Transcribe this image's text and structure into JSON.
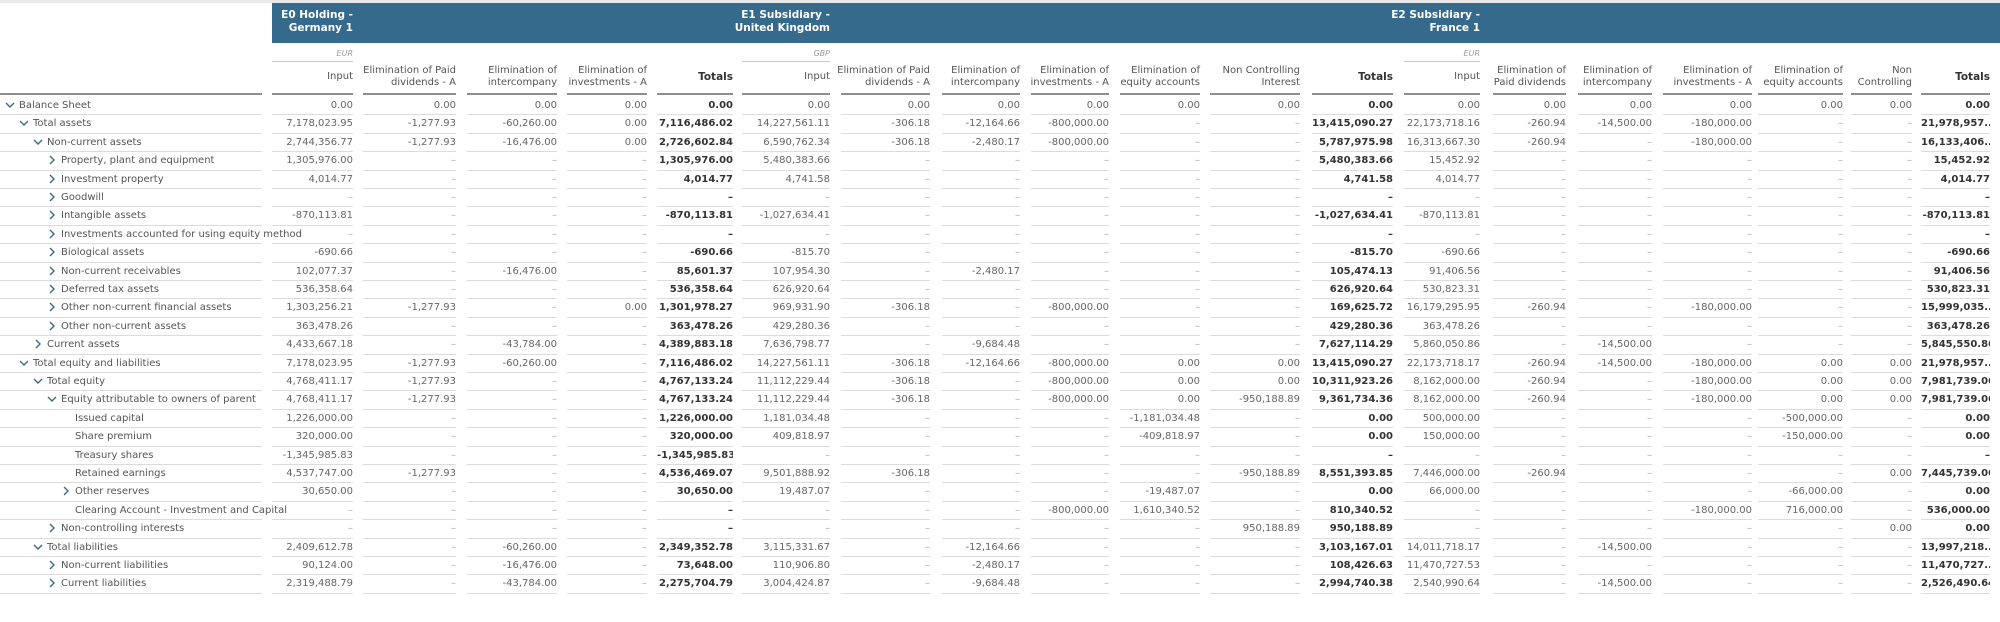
{
  "entities": [
    {
      "title": "E0 Holding -\nGermany 1",
      "currency": "EUR",
      "columns": [
        "Input",
        "Elimination of Paid dividends - A",
        "Elimination of intercompany",
        "Elimination of investments - A",
        "Totals"
      ]
    },
    {
      "title": "E1 Subsidiary -\nUnited Kingdom",
      "currency": "GBP",
      "columns": [
        "Input",
        "Elimination of Paid dividends - A",
        "Elimination of intercompany",
        "Elimination of investments - A",
        "Elimination of equity accounts",
        "Non Controlling Interest",
        "Totals"
      ]
    },
    {
      "title": "E2 Subsidiary -\nFrance 1",
      "currency": "EUR",
      "columns": [
        "Input",
        "Elimination of Paid dividends",
        "Elimination of intercompany",
        "Elimination of investments - A",
        "Elimination of equity accounts",
        "Non Controlling",
        "Totals"
      ]
    }
  ],
  "rows": [
    {
      "label": "Balance Sheet",
      "level": 0,
      "toggle": "expanded",
      "values": [
        "0.00",
        "0.00",
        "0.00",
        "0.00",
        "0.00",
        "0.00",
        "0.00",
        "0.00",
        "0.00",
        "0.00",
        "0.00",
        "0.00",
        "0.00",
        "0.00",
        "0.00",
        "0.00",
        "0.00",
        "0.00",
        "0.00"
      ]
    },
    {
      "label": "Total assets",
      "level": 1,
      "toggle": "expanded",
      "values": [
        "7,178,023.95",
        "-1,277.93",
        "-60,260.00",
        "0.00",
        "7,116,486.02",
        "14,227,561.11",
        "-306.18",
        "-12,164.66",
        "-800,000.00",
        "–",
        "–",
        "13,415,090.27",
        "22,173,718.16",
        "-260.94",
        "-14,500.00",
        "-180,000.00",
        "–",
        "–",
        "21,978,957...."
      ]
    },
    {
      "label": "Non-current assets",
      "level": 2,
      "toggle": "expanded",
      "values": [
        "2,744,356.77",
        "-1,277.93",
        "-16,476.00",
        "0.00",
        "2,726,602.84",
        "6,590,762.34",
        "-306.18",
        "-2,480.17",
        "-800,000.00",
        "–",
        "–",
        "5,787,975.98",
        "16,313,667.30",
        "-260.94",
        "–",
        "-180,000.00",
        "–",
        "–",
        "16,133,406...."
      ]
    },
    {
      "label": "Property, plant and equipment",
      "level": 3,
      "toggle": "collapsed",
      "values": [
        "1,305,976.00",
        "–",
        "–",
        "–",
        "1,305,976.00",
        "5,480,383.66",
        "–",
        "–",
        "–",
        "–",
        "–",
        "5,480,383.66",
        "15,452.92",
        "–",
        "–",
        "–",
        "–",
        "–",
        "15,452.92"
      ]
    },
    {
      "label": "Investment property",
      "level": 3,
      "toggle": "collapsed",
      "values": [
        "4,014.77",
        "–",
        "–",
        "–",
        "4,014.77",
        "4,741.58",
        "–",
        "–",
        "–",
        "–",
        "–",
        "4,741.58",
        "4,014.77",
        "–",
        "–",
        "–",
        "–",
        "–",
        "4,014.77"
      ]
    },
    {
      "label": "Goodwill",
      "level": 3,
      "toggle": "collapsed",
      "values": [
        "–",
        "–",
        "–",
        "–",
        "–",
        "–",
        "–",
        "–",
        "–",
        "–",
        "–",
        "–",
        "–",
        "–",
        "–",
        "–",
        "–",
        "–",
        "–"
      ]
    },
    {
      "label": "Intangible assets",
      "level": 3,
      "toggle": "collapsed",
      "values": [
        "-870,113.81",
        "–",
        "–",
        "–",
        "-870,113.81",
        "-1,027,634.41",
        "–",
        "–",
        "–",
        "–",
        "–",
        "-1,027,634.41",
        "-870,113.81",
        "–",
        "–",
        "–",
        "–",
        "–",
        "-870,113.81"
      ]
    },
    {
      "label": "Investments accounted for using equity method",
      "level": 3,
      "toggle": "collapsed",
      "values": [
        "–",
        "–",
        "–",
        "–",
        "–",
        "–",
        "–",
        "–",
        "–",
        "–",
        "–",
        "–",
        "–",
        "–",
        "–",
        "–",
        "–",
        "–",
        "–"
      ]
    },
    {
      "label": "Biological assets",
      "level": 3,
      "toggle": "collapsed",
      "values": [
        "-690.66",
        "–",
        "–",
        "–",
        "-690.66",
        "-815.70",
        "–",
        "–",
        "–",
        "–",
        "–",
        "-815.70",
        "-690.66",
        "–",
        "–",
        "–",
        "–",
        "–",
        "-690.66"
      ]
    },
    {
      "label": "Non-current receivables",
      "level": 3,
      "toggle": "collapsed",
      "values": [
        "102,077.37",
        "–",
        "-16,476.00",
        "–",
        "85,601.37",
        "107,954.30",
        "–",
        "-2,480.17",
        "–",
        "–",
        "–",
        "105,474.13",
        "91,406.56",
        "–",
        "–",
        "–",
        "–",
        "–",
        "91,406.56"
      ]
    },
    {
      "label": "Deferred tax assets",
      "level": 3,
      "toggle": "collapsed",
      "values": [
        "536,358.64",
        "–",
        "–",
        "–",
        "536,358.64",
        "626,920.64",
        "–",
        "–",
        "–",
        "–",
        "–",
        "626,920.64",
        "530,823.31",
        "–",
        "–",
        "–",
        "–",
        "–",
        "530,823.31"
      ]
    },
    {
      "label": "Other non-current financial assets",
      "level": 3,
      "toggle": "collapsed",
      "values": [
        "1,303,256.21",
        "-1,277.93",
        "–",
        "0.00",
        "1,301,978.27",
        "969,931.90",
        "-306.18",
        "–",
        "-800,000.00",
        "–",
        "–",
        "169,625.72",
        "16,179,295.95",
        "-260.94",
        "–",
        "-180,000.00",
        "–",
        "–",
        "15,999,035...."
      ]
    },
    {
      "label": "Other non-current assets",
      "level": 3,
      "toggle": "collapsed",
      "values": [
        "363,478.26",
        "–",
        "–",
        "–",
        "363,478.26",
        "429,280.36",
        "–",
        "–",
        "–",
        "–",
        "–",
        "429,280.36",
        "363,478.26",
        "–",
        "–",
        "–",
        "–",
        "–",
        "363,478.26"
      ]
    },
    {
      "label": "Current assets",
      "level": 2,
      "toggle": "collapsed",
      "values": [
        "4,433,667.18",
        "–",
        "-43,784.00",
        "–",
        "4,389,883.18",
        "7,636,798.77",
        "–",
        "-9,684.48",
        "–",
        "–",
        "–",
        "7,627,114.29",
        "5,860,050.86",
        "–",
        "-14,500.00",
        "–",
        "–",
        "–",
        "5,845,550.86"
      ]
    },
    {
      "label": "Total equity and liabilities",
      "level": 1,
      "toggle": "expanded",
      "values": [
        "7,178,023.95",
        "-1,277.93",
        "-60,260.00",
        "–",
        "7,116,486.02",
        "14,227,561.11",
        "-306.18",
        "-12,164.66",
        "-800,000.00",
        "0.00",
        "0.00",
        "13,415,090.27",
        "22,173,718.17",
        "-260.94",
        "-14,500.00",
        "-180,000.00",
        "0.00",
        "0.00",
        "21,978,957...."
      ]
    },
    {
      "label": "Total equity",
      "level": 2,
      "toggle": "expanded",
      "values": [
        "4,768,411.17",
        "-1,277.93",
        "–",
        "–",
        "4,767,133.24",
        "11,112,229.44",
        "-306.18",
        "–",
        "-800,000.00",
        "0.00",
        "0.00",
        "10,311,923.26",
        "8,162,000.00",
        "-260.94",
        "–",
        "-180,000.00",
        "0.00",
        "0.00",
        "7,981,739.06"
      ]
    },
    {
      "label": "Equity attributable to owners of parent",
      "level": 3,
      "toggle": "expanded",
      "values": [
        "4,768,411.17",
        "-1,277.93",
        "–",
        "–",
        "4,767,133.24",
        "11,112,229.44",
        "-306.18",
        "–",
        "-800,000.00",
        "0.00",
        "-950,188.89",
        "9,361,734.36",
        "8,162,000.00",
        "-260.94",
        "–",
        "-180,000.00",
        "0.00",
        "0.00",
        "7,981,739.06"
      ]
    },
    {
      "label": "Issued capital",
      "level": 4,
      "toggle": "none",
      "values": [
        "1,226,000.00",
        "–",
        "–",
        "–",
        "1,226,000.00",
        "1,181,034.48",
        "–",
        "–",
        "–",
        "-1,181,034.48",
        "–",
        "0.00",
        "500,000.00",
        "–",
        "–",
        "–",
        "-500,000.00",
        "–",
        "0.00"
      ]
    },
    {
      "label": "Share premium",
      "level": 4,
      "toggle": "none",
      "values": [
        "320,000.00",
        "–",
        "–",
        "–",
        "320,000.00",
        "409,818.97",
        "–",
        "–",
        "–",
        "-409,818.97",
        "–",
        "0.00",
        "150,000.00",
        "–",
        "–",
        "–",
        "-150,000.00",
        "–",
        "0.00"
      ]
    },
    {
      "label": "Treasury shares",
      "level": 4,
      "toggle": "none",
      "values": [
        "-1,345,985.83",
        "–",
        "–",
        "–",
        "-1,345,985.83",
        "–",
        "–",
        "–",
        "–",
        "–",
        "–",
        "–",
        "–",
        "–",
        "–",
        "–",
        "–",
        "–",
        "–"
      ]
    },
    {
      "label": "Retained earnings",
      "level": 4,
      "toggle": "none",
      "values": [
        "4,537,747.00",
        "-1,277.93",
        "–",
        "–",
        "4,536,469.07",
        "9,501,888.92",
        "-306.18",
        "–",
        "–",
        "–",
        "-950,188.89",
        "8,551,393.85",
        "7,446,000.00",
        "-260.94",
        "–",
        "–",
        "–",
        "0.00",
        "7,445,739.06"
      ]
    },
    {
      "label": "Other reserves",
      "level": 4,
      "toggle": "collapsed",
      "values": [
        "30,650.00",
        "–",
        "–",
        "–",
        "30,650.00",
        "19,487.07",
        "–",
        "–",
        "–",
        "-19,487.07",
        "–",
        "0.00",
        "66,000.00",
        "–",
        "–",
        "–",
        "-66,000.00",
        "–",
        "0.00"
      ]
    },
    {
      "label": "Clearing Account - Investment and Capital",
      "level": 4,
      "toggle": "none",
      "values": [
        "–",
        "–",
        "–",
        "–",
        "–",
        "–",
        "–",
        "–",
        "-800,000.00",
        "1,610,340.52",
        "–",
        "810,340.52",
        "–",
        "–",
        "–",
        "-180,000.00",
        "716,000.00",
        "–",
        "536,000.00"
      ]
    },
    {
      "label": "Non-controlling interests",
      "level": 3,
      "toggle": "collapsed",
      "values": [
        "–",
        "–",
        "–",
        "–",
        "–",
        "–",
        "–",
        "–",
        "–",
        "–",
        "950,188.89",
        "950,188.89",
        "–",
        "–",
        "–",
        "–",
        "–",
        "0.00",
        "0.00"
      ]
    },
    {
      "label": "Total liabilities",
      "level": 2,
      "toggle": "expanded",
      "values": [
        "2,409,612.78",
        "–",
        "-60,260.00",
        "–",
        "2,349,352.78",
        "3,115,331.67",
        "–",
        "-12,164.66",
        "–",
        "–",
        "–",
        "3,103,167.01",
        "14,011,718.17",
        "–",
        "-14,500.00",
        "–",
        "–",
        "–",
        "13,997,218...."
      ]
    },
    {
      "label": "Non-current liabilities",
      "level": 3,
      "toggle": "collapsed",
      "values": [
        "90,124.00",
        "–",
        "-16,476.00",
        "–",
        "73,648.00",
        "110,906.80",
        "–",
        "-2,480.17",
        "–",
        "–",
        "–",
        "108,426.63",
        "11,470,727.53",
        "–",
        "–",
        "–",
        "–",
        "–",
        "11,470,727...."
      ]
    },
    {
      "label": "Current liabilities",
      "level": 3,
      "toggle": "collapsed",
      "values": [
        "2,319,488.79",
        "–",
        "-43,784.00",
        "–",
        "2,275,704.79",
        "3,004,424.87",
        "–",
        "-9,684.48",
        "–",
        "–",
        "–",
        "2,994,740.38",
        "2,540,990.64",
        "–",
        "-14,500.00",
        "–",
        "–",
        "–",
        "2,526,490.64"
      ]
    }
  ],
  "colors": {
    "header_band": "#366a8c",
    "chevron": "#366a8c",
    "row_divider": "#dcdcdc"
  }
}
